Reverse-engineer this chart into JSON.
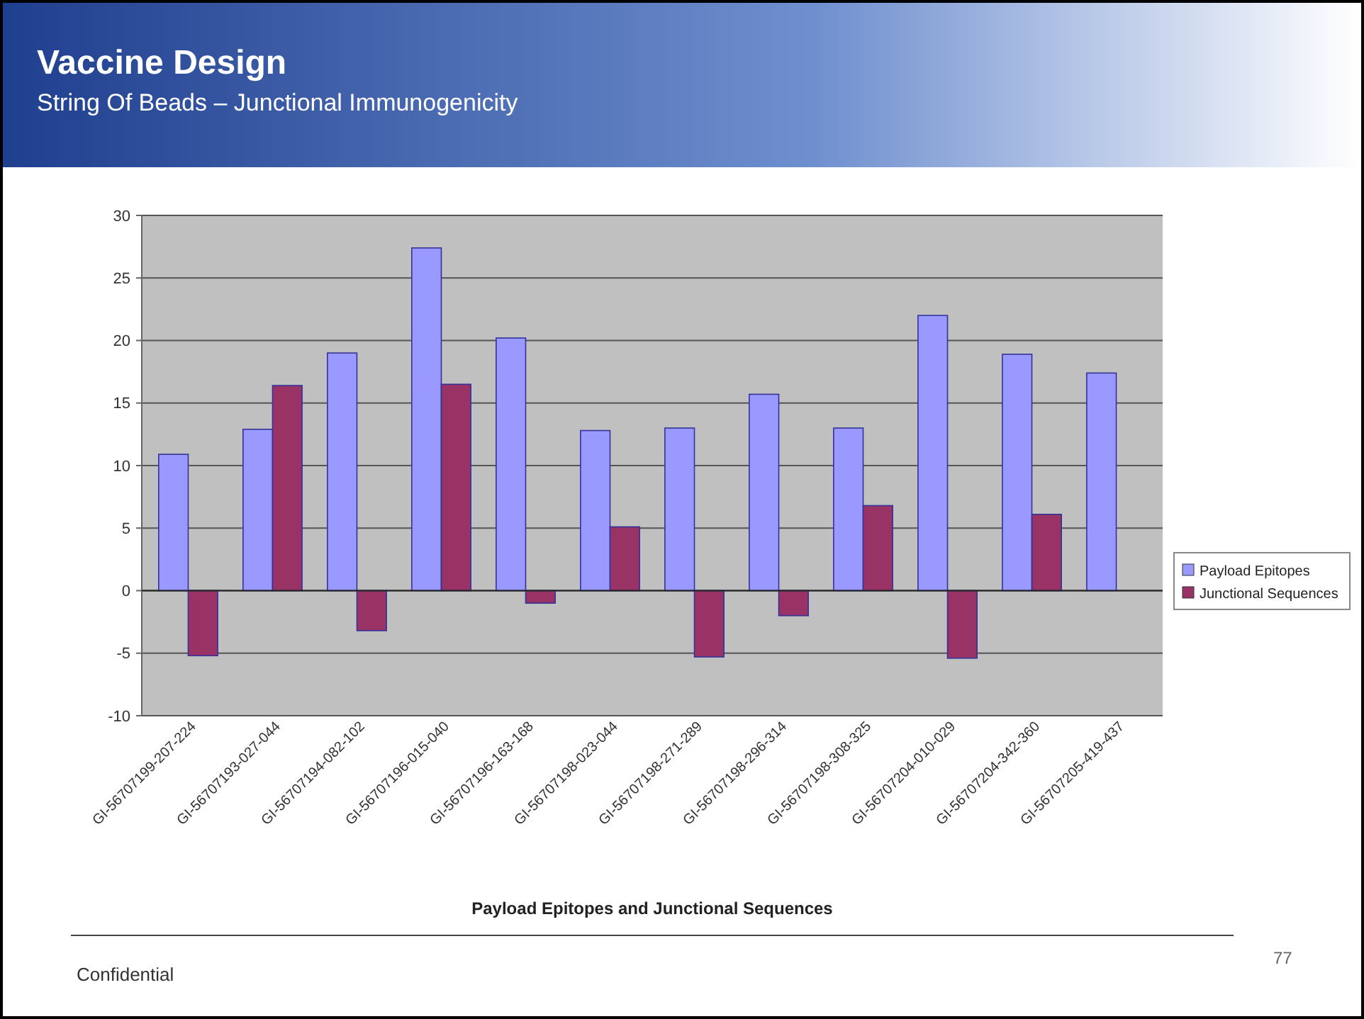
{
  "chart_data": {
    "type": "bar",
    "title": "Vaccine Design",
    "subtitle": "String Of Beads – Junctional Immunogenicity",
    "xlabel": "Payload Epitopes and Junctional Sequences",
    "categories": [
      "GI-56707199-207-224",
      "GI-56707193-027-044",
      "GI-56707194-082-102",
      "GI-56707196-015-040",
      "GI-56707196-163-168",
      "GI-56707198-023-044",
      "GI-56707198-271-289",
      "GI-56707198-296-314",
      "GI-56707198-308-325",
      "GI-56707204-010-029",
      "GI-56707204-342-360",
      "GI-56707205-419-437"
    ],
    "series": [
      {
        "name": "Payload Epitopes",
        "color": "#9999ff",
        "values": [
          10.9,
          12.9,
          19.0,
          27.4,
          20.2,
          12.8,
          13.0,
          15.7,
          13.0,
          22.0,
          18.9,
          17.4
        ]
      },
      {
        "name": "Junctional Sequences",
        "color": "#993366",
        "values": [
          -5.2,
          16.4,
          -3.2,
          16.5,
          -1.0,
          5.1,
          -5.3,
          -2.0,
          6.8,
          -5.4,
          6.1,
          null
        ]
      }
    ],
    "ylim": [
      -10,
      30
    ],
    "yticks": [
      -10,
      -5,
      0,
      5,
      10,
      15,
      20,
      25,
      30
    ],
    "grid": "y",
    "legend": "right",
    "annotations": [
      "Confidential",
      "77"
    ]
  }
}
